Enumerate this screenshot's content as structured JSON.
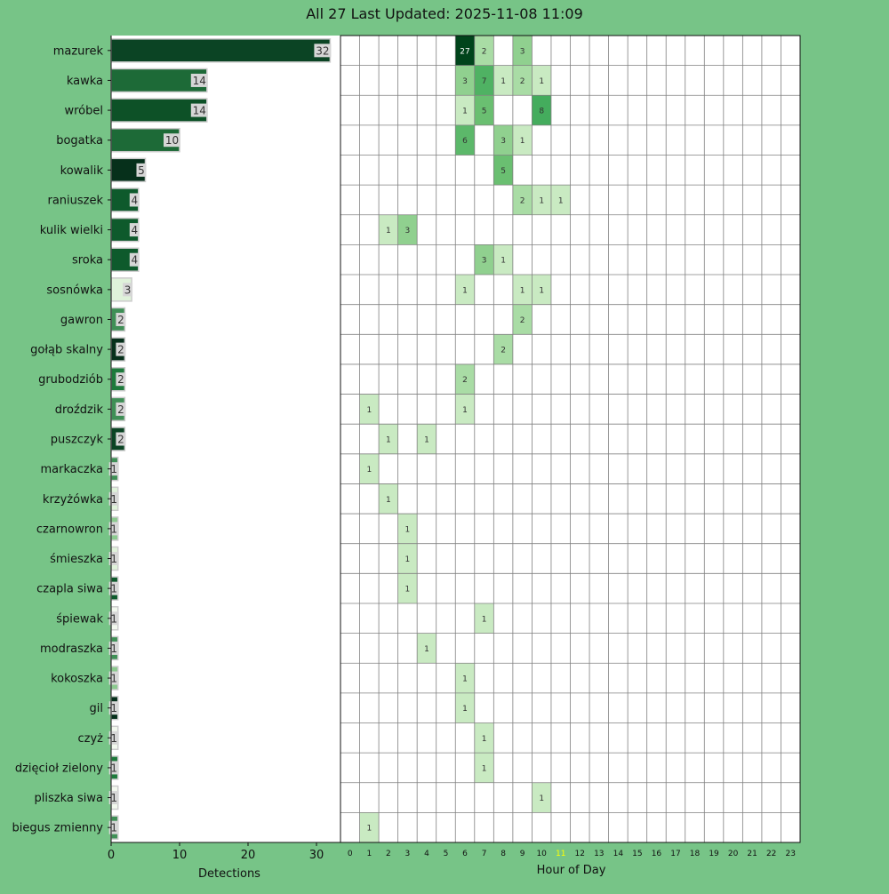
{
  "title": "All 27 Last Updated: 2025-11-08 11:09",
  "colors": {
    "background": "#77c487",
    "plot_background": "#ffffff",
    "current_hour_label": "#ffff00",
    "grid": "#808080"
  },
  "chart_data": [
    {
      "type": "bar",
      "orientation": "horizontal",
      "categories": [
        "mazurek",
        "kawka",
        "wróbel",
        "bogatka",
        "kowalik",
        "raniuszek",
        "kulik wielki",
        "sroka",
        "sosnówka",
        "gawron",
        "gołąb skalny",
        "grubodziób",
        "droździk",
        "puszczyk",
        "markaczka",
        "krzyżówka",
        "czarnowron",
        "śmieszka",
        "czapla siwa",
        "śpiewak",
        "modraszka",
        "kokoszka",
        "gil",
        "czyż",
        "dzięcioł zielony",
        "pliszka siwa",
        "biegus zmienny"
      ],
      "values": [
        32,
        14,
        14,
        10,
        5,
        4,
        4,
        4,
        3,
        2,
        2,
        2,
        2,
        2,
        1,
        1,
        1,
        1,
        1,
        1,
        1,
        1,
        1,
        1,
        1,
        1,
        1
      ],
      "bar_colors": [
        "#0b4424",
        "#1d6a37",
        "#0d5127",
        "#1d6a37",
        "#06301b",
        "#0e5a2c",
        "#0e5a2c",
        "#0e5a2c",
        "#dff2da",
        "#3f8f56",
        "#06301b",
        "#1e7a3c",
        "#3f8f56",
        "#0b4424",
        "#3f8f56",
        "#dff2da",
        "#8bc98e",
        "#dff2da",
        "#0e5a2c",
        "#f2f8ee",
        "#3f8f56",
        "#8bc98e",
        "#06301b",
        "#f2f8ee",
        "#1e7a3c",
        "#f2f8ee",
        "#3f8f56"
      ],
      "xlabel": "Detections",
      "xlim": [
        0,
        33
      ],
      "xticks": [
        "0",
        "10",
        "20",
        "30"
      ]
    },
    {
      "type": "heatmap",
      "xlabel": "Hour of Day",
      "x": [
        "0",
        "1",
        "2",
        "3",
        "4",
        "5",
        "6",
        "7",
        "8",
        "9",
        "10",
        "11",
        "12",
        "13",
        "14",
        "15",
        "16",
        "17",
        "18",
        "19",
        "20",
        "21",
        "22",
        "23"
      ],
      "highlight_hour": "11",
      "rows": [
        {
          "h": [
            6,
            7,
            9
          ],
          "v": [
            27,
            2,
            3
          ]
        },
        {
          "h": [
            6,
            7,
            8,
            9,
            10
          ],
          "v": [
            3,
            7,
            1,
            2,
            1
          ]
        },
        {
          "h": [
            6,
            7,
            10
          ],
          "v": [
            1,
            5,
            8
          ]
        },
        {
          "h": [
            6,
            8,
            9
          ],
          "v": [
            6,
            3,
            1
          ]
        },
        {
          "h": [
            8
          ],
          "v": [
            5
          ]
        },
        {
          "h": [
            9,
            10,
            11
          ],
          "v": [
            2,
            1,
            1
          ]
        },
        {
          "h": [
            2,
            3
          ],
          "v": [
            1,
            3
          ]
        },
        {
          "h": [
            7,
            8
          ],
          "v": [
            3,
            1
          ]
        },
        {
          "h": [
            6,
            9,
            10
          ],
          "v": [
            1,
            1,
            1
          ]
        },
        {
          "h": [
            9
          ],
          "v": [
            2
          ]
        },
        {
          "h": [
            8
          ],
          "v": [
            2
          ]
        },
        {
          "h": [
            6
          ],
          "v": [
            2
          ]
        },
        {
          "h": [
            1,
            6
          ],
          "v": [
            1,
            1
          ]
        },
        {
          "h": [
            2,
            4
          ],
          "v": [
            1,
            1
          ]
        },
        {
          "h": [
            1
          ],
          "v": [
            1
          ]
        },
        {
          "h": [
            2
          ],
          "v": [
            1
          ]
        },
        {
          "h": [
            3
          ],
          "v": [
            1
          ]
        },
        {
          "h": [
            3
          ],
          "v": [
            1
          ]
        },
        {
          "h": [
            3
          ],
          "v": [
            1
          ]
        },
        {
          "h": [
            7
          ],
          "v": [
            1
          ]
        },
        {
          "h": [
            4
          ],
          "v": [
            1
          ]
        },
        {
          "h": [
            6
          ],
          "v": [
            1
          ]
        },
        {
          "h": [
            6
          ],
          "v": [
            1
          ]
        },
        {
          "h": [
            7
          ],
          "v": [
            1
          ]
        },
        {
          "h": [
            7
          ],
          "v": [
            1
          ]
        },
        {
          "h": [
            10
          ],
          "v": [
            1
          ]
        },
        {
          "h": [
            1
          ],
          "v": [
            1
          ]
        }
      ]
    }
  ]
}
